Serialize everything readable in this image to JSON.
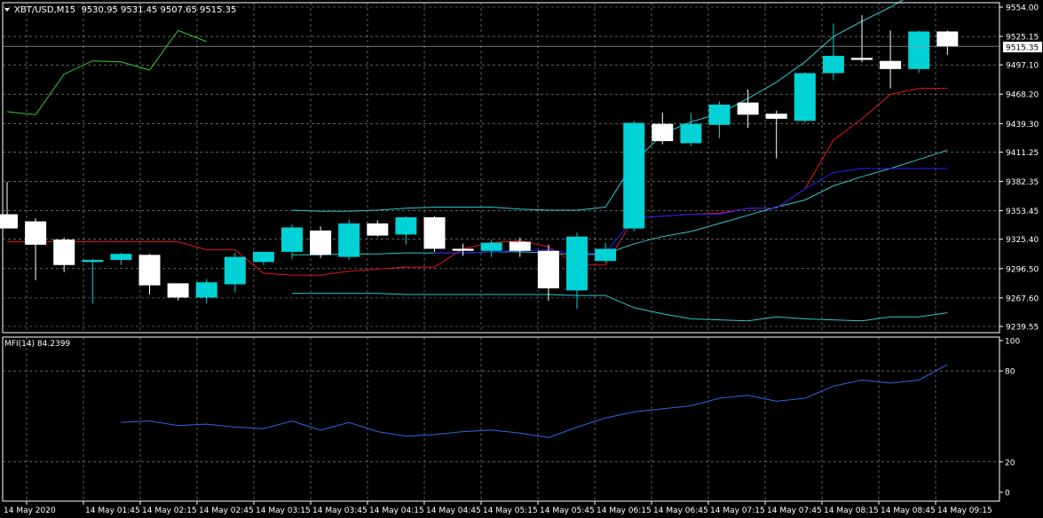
{
  "header": {
    "dropdown_icon": "triangle-down-icon",
    "symbol_info": "XBT/USD,M15  9530.95 9531.45 9507.65 9515.35"
  },
  "indicator": {
    "label": "MFI(14) 84.2399"
  },
  "colors": {
    "background": "#000000",
    "grid": "#9a9a9a",
    "axis": "#ffffff",
    "bull": "#00d2d6",
    "bear": "#ffffff",
    "bb": "#2ec8c8",
    "ma_red": "#e01818",
    "ma_blue": "#2020ff",
    "ma_cyan": "#2ec8c8",
    "lagging": "#30d030",
    "mfi": "#2a6be0",
    "price_tag_bg": "#ffffff",
    "price_tag_text": "#000000"
  },
  "chart_data": {
    "type": "candlestick",
    "price_axis": [
      "9554.00",
      "9525.15",
      "9497.10",
      "9468.20",
      "9439.30",
      "9411.25",
      "9382.35",
      "9353.45",
      "9325.40",
      "9296.50",
      "9267.60",
      "9239.55"
    ],
    "current_price": "9515.35",
    "time_axis": [
      "14 May 2020",
      "14 May 01:45",
      "14 May 02:15",
      "14 May 02:45",
      "14 May 03:15",
      "14 May 03:45",
      "14 May 04:15",
      "14 May 04:45",
      "14 May 05:15",
      "14 May 05:45",
      "14 May 06:15",
      "14 May 06:45",
      "14 May 07:15",
      "14 May 07:45",
      "14 May 08:15",
      "14 May 08:45",
      "14 May 09:15"
    ],
    "candles": [
      {
        "o": 9350,
        "h": 9382,
        "l": 9338,
        "c": 9336
      },
      {
        "o": 9343,
        "h": 9346,
        "l": 9285,
        "c": 9320
      },
      {
        "o": 9325,
        "h": 9327,
        "l": 9293,
        "c": 9300
      },
      {
        "o": 9303,
        "h": 9306,
        "l": 9262,
        "c": 9305
      },
      {
        "o": 9305,
        "h": 9312,
        "l": 9300,
        "c": 9311
      },
      {
        "o": 9310,
        "h": 9311,
        "l": 9271,
        "c": 9280
      },
      {
        "o": 9282,
        "h": 9282,
        "l": 9265,
        "c": 9268
      },
      {
        "o": 9268,
        "h": 9286,
        "l": 9262,
        "c": 9283
      },
      {
        "o": 9281,
        "h": 9312,
        "l": 9273,
        "c": 9308
      },
      {
        "o": 9303,
        "h": 9313,
        "l": 9300,
        "c": 9313
      },
      {
        "o": 9313,
        "h": 9340,
        "l": 9306,
        "c": 9337
      },
      {
        "o": 9334,
        "h": 9338,
        "l": 9307,
        "c": 9310
      },
      {
        "o": 9308,
        "h": 9345,
        "l": 9305,
        "c": 9341
      },
      {
        "o": 9341,
        "h": 9344,
        "l": 9328,
        "c": 9329
      },
      {
        "o": 9330,
        "h": 9348,
        "l": 9320,
        "c": 9347
      },
      {
        "o": 9347,
        "h": 9348,
        "l": 9313,
        "c": 9316
      },
      {
        "o": 9316,
        "h": 9321,
        "l": 9309,
        "c": 9314
      },
      {
        "o": 9314,
        "h": 9325,
        "l": 9308,
        "c": 9322
      },
      {
        "o": 9323,
        "h": 9327,
        "l": 9308,
        "c": 9314
      },
      {
        "o": 9314,
        "h": 9320,
        "l": 9265,
        "c": 9277
      },
      {
        "o": 9275,
        "h": 9332,
        "l": 9257,
        "c": 9328
      },
      {
        "o": 9304,
        "h": 9322,
        "l": 9302,
        "c": 9316
      },
      {
        "o": 9336,
        "h": 9442,
        "l": 9333,
        "c": 9440
      },
      {
        "o": 9439,
        "h": 9450,
        "l": 9419,
        "c": 9422
      },
      {
        "o": 9420,
        "h": 9450,
        "l": 9417,
        "c": 9439
      },
      {
        "o": 9438,
        "h": 9461,
        "l": 9425,
        "c": 9458
      },
      {
        "o": 9460,
        "h": 9473,
        "l": 9435,
        "c": 9448
      },
      {
        "o": 9449,
        "h": 9452,
        "l": 9405,
        "c": 9444
      },
      {
        "o": 9442,
        "h": 9490,
        "l": 9440,
        "c": 9489
      },
      {
        "o": 9489,
        "h": 9538,
        "l": 9482,
        "c": 9506
      },
      {
        "o": 9504,
        "h": 9546,
        "l": 9500,
        "c": 9502
      },
      {
        "o": 9501,
        "h": 9531,
        "l": 9474,
        "c": 9493
      },
      {
        "o": 9493,
        "h": 9531,
        "l": 9489,
        "c": 9530
      },
      {
        "o": 9530,
        "h": 9531,
        "l": 9507,
        "c": 9515
      }
    ],
    "bb_upper": [
      null,
      null,
      null,
      null,
      null,
      null,
      null,
      null,
      null,
      null,
      9354,
      9353,
      9353,
      9354,
      9356,
      9357,
      9357,
      9357,
      9355,
      9354,
      9354,
      9357,
      9401,
      9429,
      9441,
      9449,
      9464,
      9480,
      9500,
      9525,
      9540,
      9554,
      9570,
      9580
    ],
    "bb_lower": [
      null,
      null,
      null,
      null,
      null,
      null,
      null,
      null,
      null,
      null,
      9272,
      9272,
      9272,
      9272,
      9271,
      9271,
      9271,
      9271,
      9271,
      9271,
      9270,
      9270,
      9258,
      9252,
      9247,
      9246,
      9245,
      9249,
      9247,
      9246,
      9245,
      9249,
      9249,
      9253
    ],
    "bb_middle": [
      null,
      null,
      null,
      null,
      null,
      null,
      null,
      null,
      null,
      null,
      9310,
      9310,
      9311,
      9311,
      9312,
      9312,
      9312,
      9313,
      9313,
      9312,
      9310,
      9311,
      9321,
      9328,
      9333,
      9341,
      9349,
      9357,
      9364,
      9378,
      9387,
      9395,
      9404,
      9413
    ],
    "ma_red": [
      9323,
      9323,
      9323,
      9323,
      9323,
      9323,
      9323,
      9315,
      9315,
      9292,
      9290,
      9290,
      9294,
      9296,
      9298,
      9298,
      9316,
      9322,
      9324,
      9318,
      9300,
      9300,
      9346,
      9348,
      9350,
      9351,
      9356,
      9356,
      9375,
      9423,
      9444,
      9468,
      9474,
      9474
    ],
    "ma_blue": [
      null,
      null,
      null,
      null,
      null,
      null,
      null,
      null,
      null,
      null,
      null,
      null,
      null,
      null,
      null,
      9312,
      9312,
      9313,
      9314,
      9315,
      9311,
      9312,
      9346,
      9348,
      9350,
      9350,
      9356,
      9356,
      9375,
      9391,
      9395,
      9395,
      9395,
      9395
    ],
    "lagging": [
      9451,
      9448,
      9488,
      9501,
      9500,
      9492,
      9531,
      9520
    ],
    "mfi": [
      null,
      null,
      null,
      null,
      46,
      47,
      44,
      45,
      43,
      42,
      47,
      41,
      46,
      40,
      37,
      38,
      40,
      41,
      39,
      36,
      43,
      49,
      53,
      55,
      57,
      62,
      64,
      60,
      62,
      70,
      74,
      72,
      74,
      84.24
    ]
  }
}
